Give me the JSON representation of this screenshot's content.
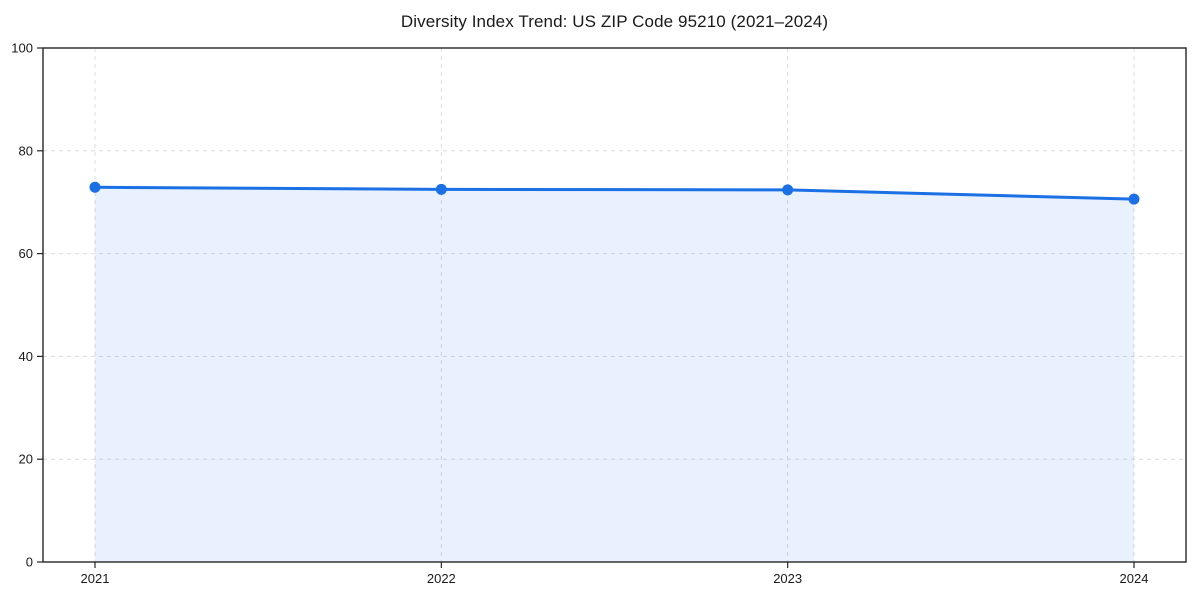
{
  "chart_data": {
    "type": "area",
    "title": "Diversity Index Trend: US ZIP Code 95210 (2021–2024)",
    "categories": [
      "2021",
      "2022",
      "2023",
      "2024"
    ],
    "series": [
      {
        "name": "Diversity Index",
        "values": [
          72.9,
          72.5,
          72.4,
          70.6
        ]
      }
    ],
    "xlabel": "",
    "ylabel": "",
    "ylim": [
      0,
      100
    ],
    "yticks": [
      0,
      20,
      40,
      60,
      80,
      100
    ],
    "grid": true,
    "grid_style": "dashed",
    "legend": false,
    "line_color": "#1a70e4",
    "marker_color": "#1a70e4",
    "fill_color": "#1a73e8",
    "fill_opacity": 0.1,
    "grid_color": "#dcdcdc",
    "frame_color": "#262626"
  }
}
